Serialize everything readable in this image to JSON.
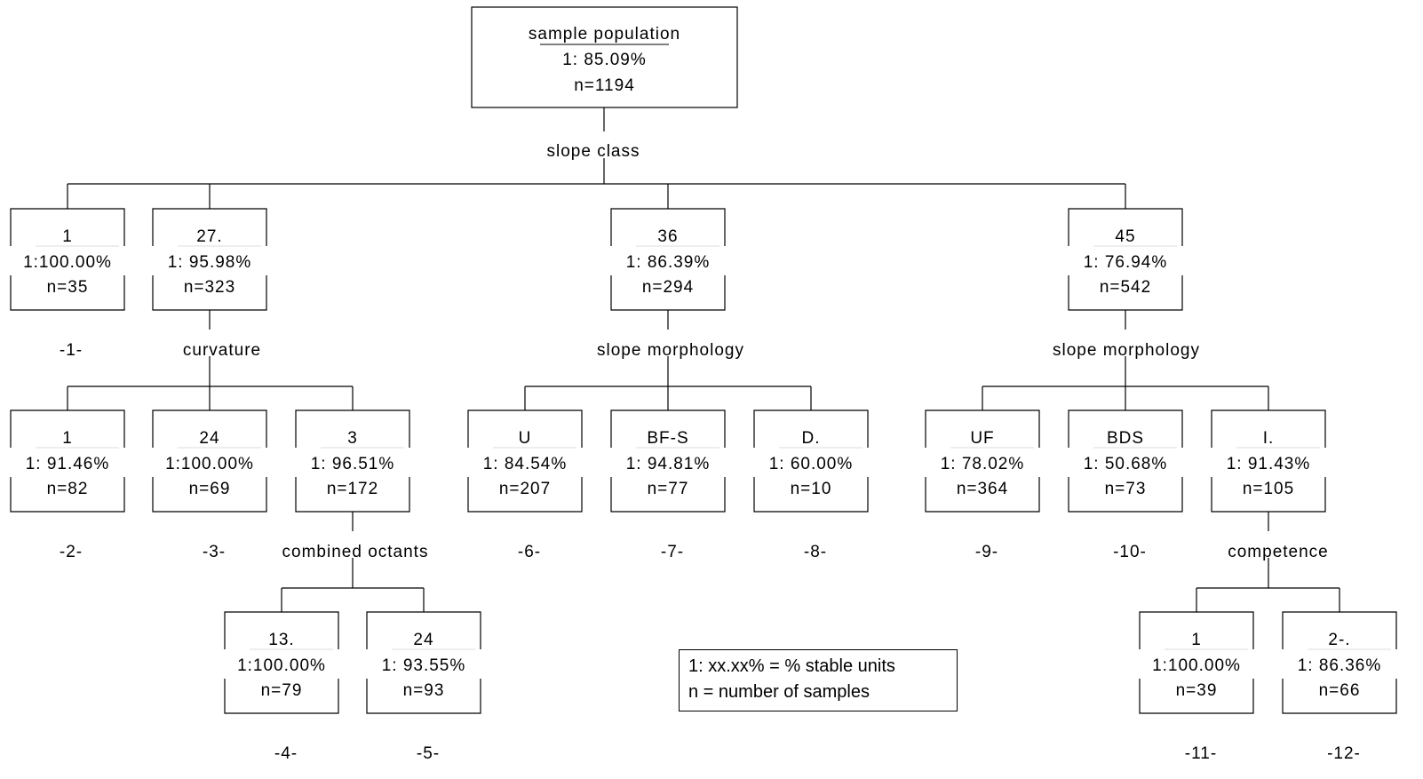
{
  "root": {
    "title": "sample population",
    "pct": "1: 85.09%",
    "n": "n=1194"
  },
  "splits": {
    "slope_class": "slope class",
    "curvature": "curvature",
    "morph36": "slope morphology",
    "morph45": "slope morphology",
    "octants": "combined octants",
    "competence": "competence"
  },
  "nodes": [
    {
      "id": "sc1",
      "title": "1",
      "pct": "1:100.00%",
      "n": "n=35"
    },
    {
      "id": "sc27",
      "title": "27.",
      "pct": "1: 95.98%",
      "n": "n=323"
    },
    {
      "id": "sc36",
      "title": "36",
      "pct": "1: 86.39%",
      "n": "n=294"
    },
    {
      "id": "sc45",
      "title": "45",
      "pct": "1: 76.94%",
      "n": "n=542"
    },
    {
      "id": "cv1",
      "title": "1",
      "pct": "1: 91.46%",
      "n": "n=82"
    },
    {
      "id": "cv24",
      "title": "24",
      "pct": "1:100.00%",
      "n": "n=69"
    },
    {
      "id": "cv3",
      "title": "3",
      "pct": "1: 96.51%",
      "n": "n=172"
    },
    {
      "id": "m36U",
      "title": "U",
      "pct": "1: 84.54%",
      "n": "n=207"
    },
    {
      "id": "m36BFS",
      "title": "BF-S",
      "pct": "1: 94.81%",
      "n": "n=77"
    },
    {
      "id": "m36D",
      "title": "D.",
      "pct": "1: 60.00%",
      "n": "n=10"
    },
    {
      "id": "m45UF",
      "title": "UF",
      "pct": "1: 78.02%",
      "n": "n=364"
    },
    {
      "id": "m45BDS",
      "title": "BDS",
      "pct": "1: 50.68%",
      "n": "n=73"
    },
    {
      "id": "m45I",
      "title": "I.",
      "pct": "1: 91.43%",
      "n": "n=105"
    },
    {
      "id": "oc13",
      "title": "13.",
      "pct": "1:100.00%",
      "n": "n=79"
    },
    {
      "id": "oc24",
      "title": "24",
      "pct": "1: 93.55%",
      "n": "n=93"
    },
    {
      "id": "co1",
      "title": "1",
      "pct": "1:100.00%",
      "n": "n=39"
    },
    {
      "id": "co2",
      "title": "2-.",
      "pct": "1: 86.36%",
      "n": "n=66"
    }
  ],
  "leaf_labels": [
    "-1-",
    "-2-",
    "-3-",
    "-4-",
    "-5-",
    "-6-",
    "-7-",
    "-8-",
    "-9-",
    "-10-",
    "-11-",
    "-12-"
  ],
  "legend": {
    "line1": "1: xx.xx% = % stable units",
    "line2": "n = number of samples"
  }
}
